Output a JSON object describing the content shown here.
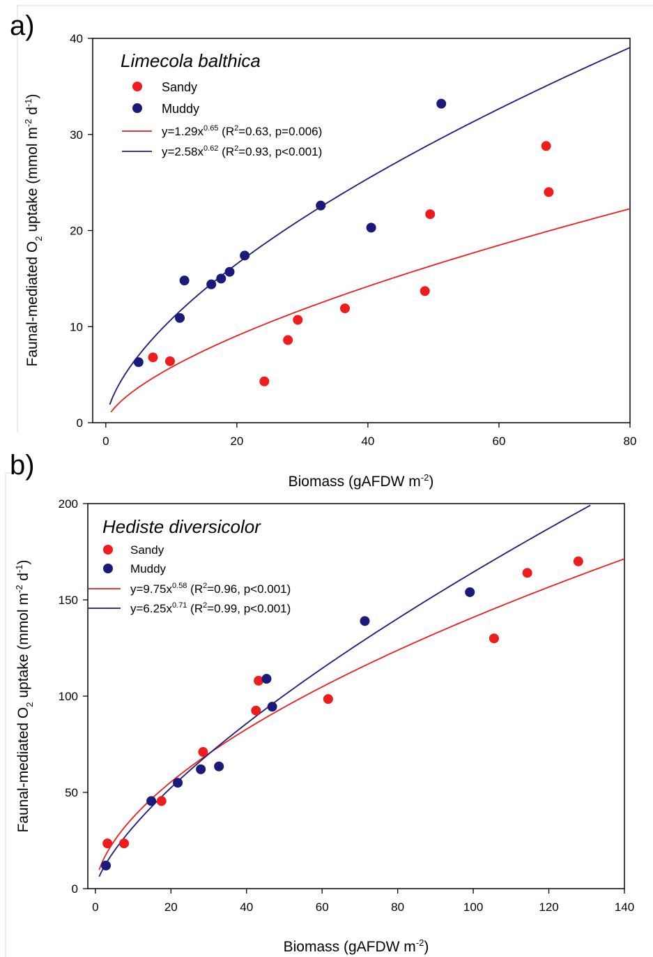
{
  "chart_data": [
    {
      "panel": "a)",
      "type": "scatter",
      "title": "Limecola balthica",
      "xlabel": "Biomass (gAFDW m",
      "xlabel_sup": "-2",
      "xlabel_tail": ")",
      "ylabel": "Faunal-mediated O",
      "ylabel_sub": "2",
      "ylabel_mid": " uptake (mmol m",
      "ylabel_sup1": "-2",
      "ylabel_mid2": " d",
      "ylabel_sup2": "-1",
      "ylabel_tail": ")",
      "xlim": [
        -2,
        80
      ],
      "ylim": [
        0,
        40
      ],
      "xticks": [
        0,
        20,
        40,
        60,
        80
      ],
      "yticks": [
        0,
        10,
        20,
        30,
        40
      ],
      "legend_position": "top-left",
      "series": [
        {
          "name": "Sandy",
          "color": "#ee1c1c",
          "x": [
            7.2,
            9.8,
            24.2,
            27.8,
            29.3,
            36.5,
            48.7,
            49.5,
            67.2,
            67.6
          ],
          "y": [
            6.8,
            6.4,
            4.3,
            8.6,
            10.7,
            11.9,
            13.7,
            21.7,
            28.8,
            24.0
          ]
        },
        {
          "name": "Muddy",
          "color": "#1a1a7a",
          "x": [
            5.0,
            11.3,
            12.0,
            16.1,
            17.6,
            18.9,
            21.2,
            32.8,
            40.5,
            51.2
          ],
          "y": [
            6.3,
            10.9,
            14.8,
            14.4,
            15.0,
            15.7,
            17.4,
            22.6,
            20.3,
            33.2
          ]
        }
      ],
      "fits": [
        {
          "color": "#ee1c1c",
          "a": 1.29,
          "b": 0.65,
          "x_from": 0.8,
          "x_to": 80,
          "eq_main": "y=1.29x",
          "eq_exp": "0.65",
          "eq_pre": " (R",
          "eq_r2": "2",
          "eq_stats": "=0.63, p=0.006)"
        },
        {
          "color": "#1a1a7a",
          "a": 2.58,
          "b": 0.62,
          "x_from": 0.6,
          "x_to": 80,
          "eq_main": "y=2.58x",
          "eq_exp": "0.62",
          "eq_pre": " (R",
          "eq_r2": "2",
          "eq_stats": "=0.93, p<0.001)"
        }
      ]
    },
    {
      "panel": "b)",
      "type": "scatter",
      "title": "Hediste diversicolor",
      "xlabel": "Biomass (gAFDW m",
      "xlabel_sup": "-2",
      "xlabel_tail": ")",
      "ylabel": "Faunal-mediated O",
      "ylabel_sub": "2",
      "ylabel_mid": " uptake (mmol m",
      "ylabel_sup1": "-2",
      "ylabel_mid2": " d",
      "ylabel_sup2": "-1",
      "ylabel_tail": ")",
      "xlim": [
        -2,
        140
      ],
      "ylim": [
        0,
        200
      ],
      "xticks": [
        0,
        20,
        40,
        60,
        80,
        100,
        120,
        140
      ],
      "yticks": [
        0,
        50,
        100,
        150,
        200
      ],
      "legend_position": "top-left",
      "series": [
        {
          "name": "Sandy",
          "color": "#ee1c1c",
          "x": [
            3.2,
            7.6,
            17.5,
            28.5,
            42.5,
            43.2,
            61.6,
            105.5,
            114.3,
            127.8
          ],
          "y": [
            23.5,
            23.5,
            45.5,
            71.0,
            92.5,
            108.0,
            98.5,
            130.0,
            164.0,
            170.0
          ]
        },
        {
          "name": "Muddy",
          "color": "#1a1a7a",
          "x": [
            2.8,
            14.8,
            21.8,
            27.9,
            32.7,
            45.3,
            46.8,
            71.3,
            99.1
          ],
          "y": [
            12.0,
            45.5,
            55.0,
            62.0,
            63.5,
            109.0,
            94.5,
            139.0,
            154.0
          ]
        }
      ],
      "fits": [
        {
          "color": "#ee1c1c",
          "a": 9.75,
          "b": 0.58,
          "x_from": 1.0,
          "x_to": 140,
          "eq_main": "y=9.75x",
          "eq_exp": "0.58",
          "eq_pre": " (R",
          "eq_r2": "2",
          "eq_stats": "=0.96, p<0.001)"
        },
        {
          "color": "#1a1a7a",
          "a": 6.25,
          "b": 0.71,
          "x_from": 1.0,
          "x_to": 131,
          "eq_main": "y=6.25x",
          "eq_exp": "0.71",
          "eq_pre": " (R",
          "eq_r2": "2",
          "eq_stats": "=0.99, p<0.001)"
        }
      ]
    }
  ]
}
